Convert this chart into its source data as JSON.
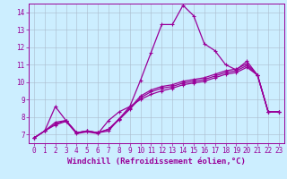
{
  "bg_color": "#cceeff",
  "line_color": "#990099",
  "grid_color": "#aabbcc",
  "xlim": [
    -0.5,
    23.5
  ],
  "ylim": [
    6.5,
    14.5
  ],
  "yticks": [
    7,
    8,
    9,
    10,
    11,
    12,
    13,
    14
  ],
  "xticks": [
    0,
    1,
    2,
    3,
    4,
    5,
    6,
    7,
    8,
    9,
    10,
    11,
    12,
    13,
    14,
    15,
    16,
    17,
    18,
    19,
    20,
    21,
    22,
    23
  ],
  "xlabel": "Windchill (Refroidissement éolien,°C)",
  "line1_x": [
    0,
    1,
    2,
    3,
    4,
    5,
    6,
    7,
    8,
    9,
    10,
    11,
    12,
    13,
    14,
    15,
    16,
    17,
    18,
    19,
    20,
    21,
    22,
    23
  ],
  "line1_y": [
    6.8,
    7.2,
    8.6,
    7.8,
    7.1,
    7.2,
    7.1,
    7.2,
    7.9,
    8.6,
    10.1,
    11.7,
    13.3,
    13.3,
    14.4,
    13.8,
    12.2,
    11.8,
    11.0,
    10.7,
    11.2,
    10.4,
    8.3,
    8.3
  ],
  "line2_x": [
    0,
    1,
    2,
    3,
    4,
    5,
    6,
    7,
    8,
    9,
    10,
    11,
    12,
    13,
    14,
    15,
    16,
    17,
    18,
    19,
    20,
    21,
    22,
    23
  ],
  "line2_y": [
    6.8,
    7.2,
    7.7,
    7.8,
    7.1,
    7.2,
    7.1,
    7.3,
    7.9,
    8.5,
    9.2,
    9.55,
    9.75,
    9.85,
    10.05,
    10.15,
    10.25,
    10.45,
    10.65,
    10.75,
    11.05,
    10.4,
    8.3,
    8.3
  ],
  "line3_x": [
    0,
    1,
    2,
    3,
    4,
    5,
    6,
    7,
    8,
    9,
    10,
    11,
    12,
    13,
    14,
    15,
    16,
    17,
    18,
    19,
    20,
    21,
    22,
    23
  ],
  "line3_y": [
    6.8,
    7.2,
    7.6,
    7.8,
    7.1,
    7.2,
    7.1,
    7.3,
    7.85,
    8.45,
    9.1,
    9.45,
    9.65,
    9.75,
    9.95,
    10.05,
    10.15,
    10.35,
    10.55,
    10.65,
    10.95,
    10.4,
    8.3,
    8.3
  ],
  "line4_x": [
    0,
    1,
    2,
    3,
    4,
    5,
    6,
    7,
    8,
    9,
    10,
    11,
    12,
    13,
    14,
    15,
    16,
    17,
    18,
    19,
    20,
    21,
    22,
    23
  ],
  "line4_y": [
    6.8,
    7.2,
    7.55,
    7.75,
    7.05,
    7.15,
    7.05,
    7.8,
    8.3,
    8.6,
    9.0,
    9.3,
    9.5,
    9.65,
    9.85,
    9.95,
    10.05,
    10.25,
    10.45,
    10.55,
    10.85,
    10.4,
    8.3,
    8.3
  ],
  "tick_fontsize": 5.5,
  "xlabel_fontsize": 6.5
}
